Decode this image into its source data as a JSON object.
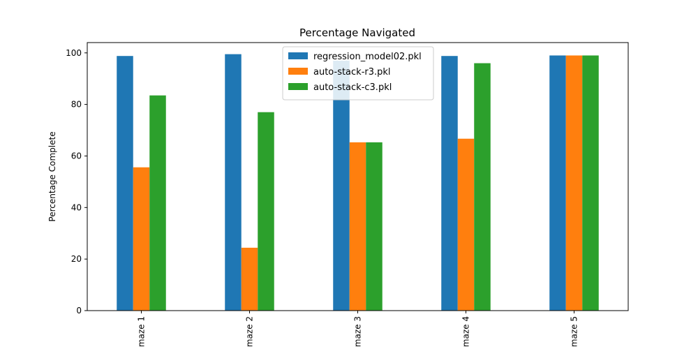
{
  "chart_data": {
    "type": "bar",
    "title": "Percentage Navigated",
    "xlabel": "",
    "ylabel": "Percentage Complete",
    "categories": [
      "maze 1",
      "maze 2",
      "maze 3",
      "maze 4",
      "maze 5"
    ],
    "series": [
      {
        "name": "regression_model02.pkl",
        "color": "#1f77b4",
        "values": [
          98.8,
          99.5,
          97.0,
          98.8,
          99.0
        ]
      },
      {
        "name": "auto-stack-r3.pkl",
        "color": "#ff7f0e",
        "values": [
          55.6,
          24.4,
          65.3,
          66.7,
          99.0
        ]
      },
      {
        "name": "auto-stack-c3.pkl",
        "color": "#2ca02c",
        "values": [
          83.5,
          77.0,
          65.3,
          96.0,
          99.0
        ]
      }
    ],
    "ylim": [
      0,
      104
    ],
    "yticks": [
      0,
      20,
      40,
      60,
      80,
      100
    ],
    "grid": false,
    "legend_position": "top-center"
  }
}
